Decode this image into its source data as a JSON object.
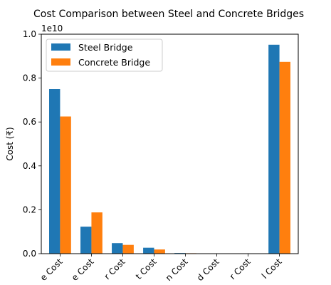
{
  "chart_data": {
    "type": "bar",
    "title": "Cost Comparison between Steel and Concrete Bridges",
    "xlabel": "",
    "ylabel": "Cost (₹)",
    "y_offset_label": "1e10",
    "y_scale_exponent": 10,
    "ylim": [
      0,
      10000000000
    ],
    "yticks": [
      0,
      2000000000,
      4000000000,
      6000000000,
      8000000000,
      10000000000
    ],
    "ytick_labels": [
      "0.0",
      "0.2",
      "0.4",
      "0.6",
      "0.8",
      "1.0"
    ],
    "categories": [
      "Material Cost",
      "Labour Cost",
      "Maintenance Cost",
      "Transport Cost",
      "Inspection Cost",
      "Environmental Cost",
      "Disposal Cost",
      "Total Cost"
    ],
    "category_tick_labels": [
      "e Cost",
      "e Cost",
      "r Cost",
      "t Cost",
      "n Cost",
      "d Cost",
      "r Cost",
      "l Cost"
    ],
    "series": [
      {
        "name": "Steel Bridge",
        "color": "#1f77b4",
        "values": [
          7500000000,
          1230000000,
          480000000,
          270000000,
          30000000,
          5000000,
          3000000,
          9520000000
        ]
      },
      {
        "name": "Concrete Bridge",
        "color": "#ff7f0e",
        "values": [
          6250000000,
          1880000000,
          400000000,
          190000000,
          20000000,
          4000000,
          2000000,
          8740000000
        ]
      }
    ],
    "legend_position": "top-left",
    "grid": false
  }
}
